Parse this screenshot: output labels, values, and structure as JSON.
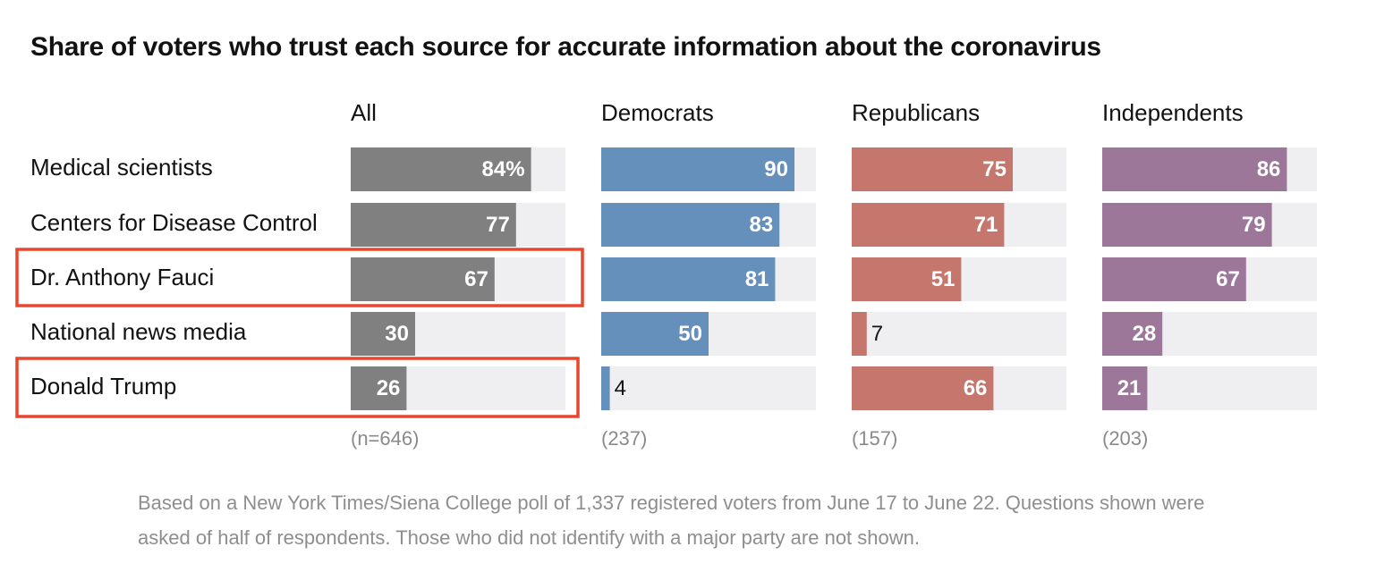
{
  "chart_data": {
    "type": "bar",
    "title": "Share of voters who trust each source for accurate information about the coronavirus",
    "categories": [
      "Medical scientists",
      "Centers for Disease Control",
      "Dr. Anthony Fauci",
      "National news media",
      "Donald Trump"
    ],
    "xlim": [
      0,
      100
    ],
    "unit_suffix_first": "%",
    "series": [
      {
        "name": "All",
        "sample": "(n=646)",
        "color": "#808080",
        "values": [
          84,
          77,
          67,
          30,
          26
        ]
      },
      {
        "name": "Democrats",
        "sample": "(237)",
        "color": "#6490bb",
        "values": [
          90,
          83,
          81,
          50,
          4
        ]
      },
      {
        "name": "Republicans",
        "sample": "(157)",
        "color": "#c5776d",
        "values": [
          75,
          71,
          51,
          7,
          66
        ]
      },
      {
        "name": "Independents",
        "sample": "(203)",
        "color": "#9c7799",
        "values": [
          86,
          79,
          67,
          28,
          21
        ]
      }
    ],
    "highlighted_rows": [
      "Dr. Anthony Fauci",
      "Donald Trump"
    ],
    "note": "Based on a New York Times/Siena College poll of 1,337 registered voters from June 17 to June 22. Questions shown were asked of half of respondents. Those who did not identify with a major party are not shown."
  },
  "colors": {
    "track": "#efeff2",
    "highlight": "#e8472f"
  }
}
